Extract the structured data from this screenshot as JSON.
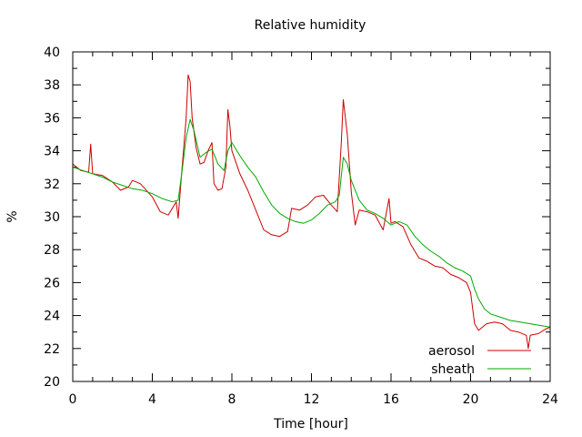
{
  "chart_data": {
    "type": "line",
    "title": "Relative humidity",
    "xlabel": "Time [hour]",
    "ylabel": "%",
    "xlim": [
      0,
      24
    ],
    "ylim": [
      20,
      40
    ],
    "x_ticks": [
      "0",
      "4",
      "8",
      "12",
      "16",
      "20",
      "24"
    ],
    "y_ticks": [
      "20",
      "22",
      "24",
      "26",
      "28",
      "30",
      "32",
      "34",
      "36",
      "38",
      "40"
    ],
    "grid": false,
    "legend_position": "bottom-right",
    "series": [
      {
        "name": "aerosol",
        "color": "#cc0000",
        "x": [
          0,
          0.4,
          0.8,
          0.9,
          1.0,
          1.5,
          2.0,
          2.4,
          2.8,
          3.0,
          3.4,
          4.0,
          4.4,
          4.8,
          5.0,
          5.2,
          5.3,
          5.5,
          5.7,
          5.8,
          5.9,
          6.0,
          6.2,
          6.4,
          6.6,
          6.8,
          7.0,
          7.1,
          7.3,
          7.5,
          7.7,
          7.8,
          7.9,
          8.0,
          8.4,
          8.8,
          9.2,
          9.6,
          10.0,
          10.4,
          10.8,
          11.0,
          11.4,
          11.8,
          12.2,
          12.6,
          13.0,
          13.3,
          13.5,
          13.6,
          13.8,
          14.0,
          14.2,
          14.4,
          14.8,
          15.2,
          15.6,
          15.9,
          16.0,
          16.2,
          16.6,
          17.0,
          17.4,
          17.8,
          18.2,
          18.6,
          19.0,
          19.4,
          19.8,
          20.0,
          20.2,
          20.4,
          20.8,
          21.2,
          21.6,
          22.0,
          22.4,
          22.8,
          22.9,
          23.0,
          23.4,
          23.8,
          24.0
        ],
        "y": [
          33.2,
          32.8,
          32.7,
          34.4,
          32.6,
          32.5,
          32.1,
          31.6,
          31.8,
          32.2,
          32.0,
          31.2,
          30.3,
          30.1,
          30.5,
          30.9,
          29.9,
          33.0,
          36.0,
          38.6,
          38.2,
          36.0,
          34.2,
          33.2,
          33.3,
          34.0,
          34.5,
          32.0,
          31.6,
          31.7,
          33.0,
          36.5,
          35.5,
          34.0,
          32.6,
          31.6,
          30.4,
          29.2,
          28.9,
          28.8,
          29.1,
          30.5,
          30.4,
          30.7,
          31.2,
          31.3,
          30.7,
          30.3,
          34.5,
          37.1,
          35.0,
          31.5,
          29.5,
          30.4,
          30.3,
          30.1,
          29.2,
          31.1,
          29.6,
          29.7,
          29.4,
          28.3,
          27.5,
          27.3,
          27.0,
          26.9,
          26.5,
          26.3,
          26.0,
          25.4,
          23.5,
          23.1,
          23.5,
          23.6,
          23.5,
          23.1,
          23.0,
          22.8,
          22.0,
          22.8,
          22.9,
          23.2,
          23.3
        ]
      },
      {
        "name": "sheath",
        "color": "#00aa00",
        "x": [
          0,
          0.5,
          1.0,
          1.5,
          2.0,
          2.5,
          3.0,
          3.5,
          4.0,
          4.5,
          5.0,
          5.3,
          5.5,
          5.7,
          5.9,
          6.1,
          6.4,
          6.7,
          7.0,
          7.3,
          7.6,
          7.8,
          8.0,
          8.4,
          8.8,
          9.2,
          9.6,
          10.0,
          10.4,
          10.8,
          11.2,
          11.6,
          12.0,
          12.4,
          12.8,
          13.2,
          13.4,
          13.6,
          13.8,
          14.0,
          14.4,
          14.8,
          15.2,
          15.6,
          16.0,
          16.4,
          16.8,
          17.2,
          17.6,
          18.0,
          18.4,
          18.8,
          19.2,
          19.6,
          20.0,
          20.2,
          20.4,
          20.7,
          21.0,
          21.5,
          22.0,
          22.5,
          23.0,
          23.5,
          24.0
        ],
        "y": [
          33.0,
          32.8,
          32.6,
          32.4,
          32.1,
          31.9,
          31.7,
          31.6,
          31.4,
          31.1,
          30.9,
          31.0,
          32.8,
          34.8,
          35.9,
          35.2,
          33.6,
          33.9,
          34.1,
          33.2,
          32.8,
          34.0,
          34.5,
          33.7,
          33.0,
          32.4,
          31.5,
          30.7,
          30.2,
          29.9,
          29.7,
          29.6,
          29.8,
          30.2,
          30.7,
          30.9,
          31.3,
          33.6,
          33.2,
          32.2,
          31.0,
          30.4,
          30.2,
          29.9,
          29.5,
          29.7,
          29.5,
          28.8,
          28.3,
          27.9,
          27.6,
          27.2,
          26.9,
          26.7,
          26.4,
          25.6,
          25.0,
          24.4,
          24.1,
          23.9,
          23.7,
          23.6,
          23.5,
          23.4,
          23.3
        ]
      }
    ]
  }
}
